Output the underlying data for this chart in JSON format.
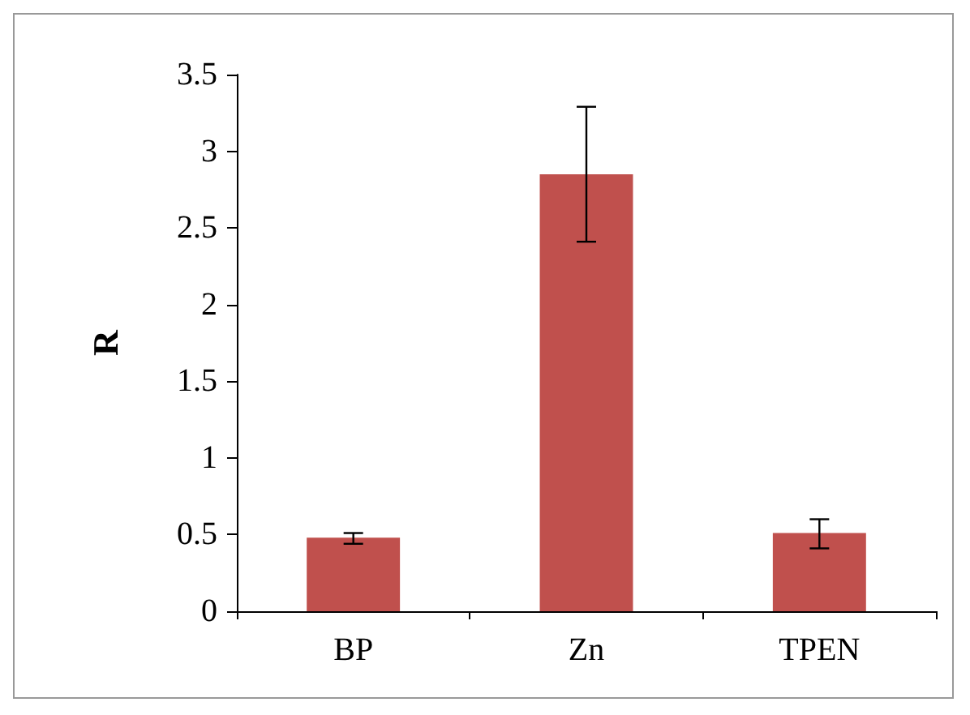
{
  "chart_data": {
    "type": "bar",
    "ylabel": "R",
    "categories": [
      "BP",
      "Zn",
      "TPEN"
    ],
    "values": [
      0.48,
      2.85,
      0.51
    ],
    "color": "#c0504d",
    "errors": [
      [
        0.44,
        0.51
      ],
      [
        2.41,
        3.29
      ],
      [
        0.41,
        0.6
      ]
    ],
    "ylim": [
      0,
      3.5
    ],
    "yticks": [
      0,
      0.5,
      1,
      1.5,
      2,
      2.5,
      3,
      3.5
    ],
    "grid": false
  }
}
